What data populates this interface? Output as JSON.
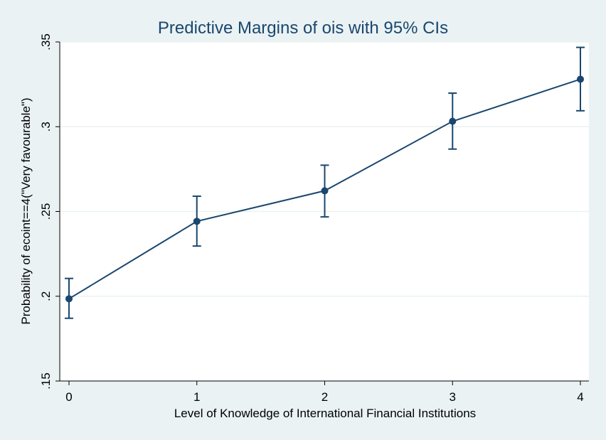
{
  "chart_data": {
    "type": "line",
    "title": "Predictive Margins of ois with 95% CIs",
    "xlabel": "Level of Knowledge of International Financial Institutions",
    "ylabel": "Probability of ecoint==4(\"Very favourable\")",
    "x": [
      0,
      1,
      2,
      3,
      4
    ],
    "x_tick_labels": [
      "0",
      "1",
      "2",
      "3",
      "4"
    ],
    "y_ticks": [
      0.15,
      0.2,
      0.25,
      0.3,
      0.35
    ],
    "y_tick_labels": [
      ".15",
      ".2",
      ".25",
      ".3",
      ".35"
    ],
    "xlim": [
      0,
      4
    ],
    "ylim": [
      0.15,
      0.35
    ],
    "grid": true,
    "series": [
      {
        "values": [
          0.1985,
          0.2442,
          0.2622,
          0.3032,
          0.328
        ],
        "ci_lower": [
          0.187,
          0.2296,
          0.2468,
          0.2868,
          0.3094
        ],
        "ci_upper": [
          0.2105,
          0.259,
          0.2773,
          0.3198,
          0.3468
        ]
      }
    ],
    "colors": {
      "line": "#1a476f",
      "marker": "#1a476f",
      "grid": "#eaf2f3",
      "plot_bg": "#ffffff",
      "page_bg": "#eaf2f3"
    }
  }
}
